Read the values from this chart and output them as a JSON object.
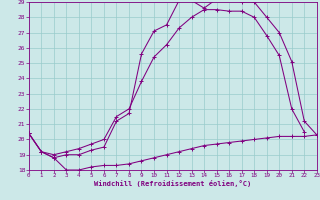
{
  "xlabel": "Windchill (Refroidissement éolien,°C)",
  "xlim": [
    0,
    23
  ],
  "ylim": [
    18,
    29
  ],
  "yticks": [
    18,
    19,
    20,
    21,
    22,
    23,
    24,
    25,
    26,
    27,
    28,
    29
  ],
  "xticks": [
    0,
    1,
    2,
    3,
    4,
    5,
    6,
    7,
    8,
    9,
    10,
    11,
    12,
    13,
    14,
    15,
    16,
    17,
    18,
    19,
    20,
    21,
    22,
    23
  ],
  "bg_color": "#cce8e8",
  "line_color": "#800080",
  "grid_color": "#99cccc",
  "line1_x": [
    0,
    1,
    2,
    3,
    4,
    5,
    6,
    7,
    8,
    9,
    10,
    11,
    12,
    13,
    14,
    15,
    16,
    17,
    18,
    19,
    20,
    21,
    22,
    23
  ],
  "line1_y": [
    20.4,
    19.2,
    18.8,
    18.0,
    18.0,
    18.2,
    18.3,
    18.3,
    18.4,
    18.6,
    18.8,
    19.0,
    19.2,
    19.4,
    19.6,
    19.7,
    19.8,
    19.9,
    20.0,
    20.1,
    20.2,
    20.2,
    20.2,
    20.3
  ],
  "line2_x": [
    0,
    1,
    2,
    3,
    4,
    5,
    6,
    7,
    8,
    9,
    10,
    11,
    12,
    13,
    14,
    15,
    16,
    17,
    18,
    19,
    20,
    21,
    22,
    23
  ],
  "line2_y": [
    20.4,
    19.2,
    18.8,
    19.0,
    19.0,
    19.3,
    19.5,
    21.2,
    21.7,
    25.6,
    27.1,
    27.5,
    29.1,
    29.1,
    28.6,
    29.2,
    29.2,
    29.0,
    29.0,
    28.0,
    27.0,
    25.1,
    21.2,
    20.3
  ],
  "line3_x": [
    0,
    1,
    2,
    3,
    4,
    5,
    6,
    7,
    8,
    9,
    10,
    11,
    12,
    13,
    14,
    15,
    16,
    17,
    18,
    19,
    20,
    21,
    22
  ],
  "line3_y": [
    20.4,
    19.2,
    19.0,
    19.2,
    19.4,
    19.7,
    20.0,
    21.5,
    22.0,
    23.8,
    25.4,
    26.2,
    27.3,
    28.0,
    28.5,
    28.5,
    28.4,
    28.4,
    28.0,
    26.8,
    25.5,
    22.0,
    20.5
  ]
}
